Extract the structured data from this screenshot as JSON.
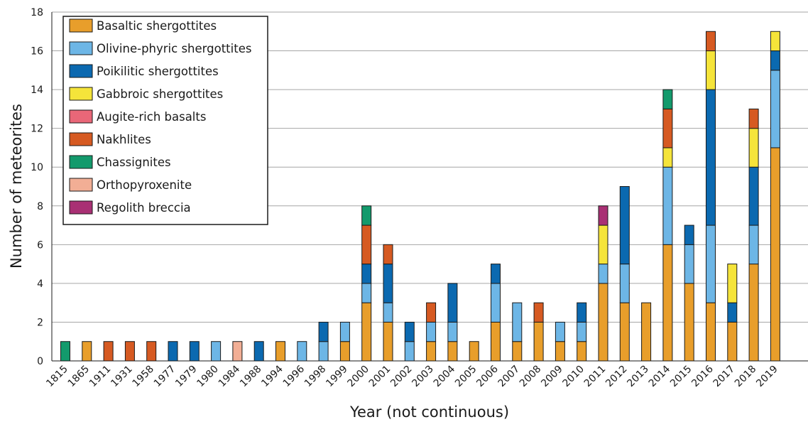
{
  "chart_data": {
    "type": "bar",
    "stacked": true,
    "title": "",
    "xlabel": "Year (not continuous)",
    "ylabel": "Number of meteorites",
    "ylim": [
      0,
      18
    ],
    "yticks": [
      0,
      2,
      4,
      6,
      8,
      10,
      12,
      14,
      16,
      18
    ],
    "grid": "horizontal",
    "legend_position": "top-left",
    "categories": [
      "1815",
      "1865",
      "1911",
      "1931",
      "1958",
      "1977",
      "1979",
      "1980",
      "1984",
      "1988",
      "1994",
      "1996",
      "1998",
      "1999",
      "2000",
      "2001",
      "2002",
      "2003",
      "2004",
      "2005",
      "2006",
      "2007",
      "2008",
      "2009",
      "2010",
      "2011",
      "2012",
      "2013",
      "2014",
      "2015",
      "2016",
      "2017",
      "2018",
      "2019"
    ],
    "series": [
      {
        "name": "Basaltic shergottites",
        "color": "#E89E2B",
        "values": [
          0,
          1,
          0,
          0,
          0,
          0,
          0,
          0,
          0,
          0,
          1,
          0,
          0,
          1,
          3,
          2,
          0,
          1,
          1,
          1,
          2,
          1,
          2,
          1,
          1,
          4,
          3,
          3,
          6,
          4,
          3,
          2,
          5,
          11
        ]
      },
      {
        "name": "Olivine-phyric shergottites",
        "color": "#6DB6E6",
        "values": [
          0,
          0,
          0,
          0,
          0,
          0,
          0,
          1,
          0,
          0,
          0,
          1,
          1,
          1,
          1,
          1,
          1,
          1,
          1,
          0,
          2,
          2,
          0,
          1,
          1,
          1,
          2,
          0,
          4,
          2,
          4,
          0,
          2,
          4
        ]
      },
      {
        "name": "Poikilitic shergottites",
        "color": "#0B69B0",
        "values": [
          0,
          0,
          0,
          0,
          0,
          1,
          1,
          0,
          0,
          1,
          0,
          0,
          1,
          0,
          1,
          2,
          1,
          0,
          2,
          0,
          1,
          0,
          0,
          0,
          1,
          0,
          4,
          0,
          0,
          1,
          7,
          1,
          3,
          1
        ]
      },
      {
        "name": "Gabbroic shergottites",
        "color": "#F5E43A",
        "values": [
          0,
          0,
          0,
          0,
          0,
          0,
          0,
          0,
          0,
          0,
          0,
          0,
          0,
          0,
          0,
          0,
          0,
          0,
          0,
          0,
          0,
          0,
          0,
          0,
          0,
          2,
          0,
          0,
          1,
          0,
          2,
          2,
          2,
          1
        ]
      },
      {
        "name": "Augite-rich basalts",
        "color": "#E96778",
        "values": [
          0,
          0,
          0,
          0,
          0,
          0,
          0,
          0,
          0,
          0,
          0,
          0,
          0,
          0,
          0,
          0,
          0,
          0,
          0,
          0,
          0,
          0,
          0,
          0,
          0,
          0,
          0,
          0,
          0,
          0,
          0,
          0,
          0,
          0
        ]
      },
      {
        "name": "Nakhlites",
        "color": "#D65A22",
        "values": [
          0,
          0,
          1,
          1,
          1,
          0,
          0,
          0,
          0,
          0,
          0,
          0,
          0,
          0,
          2,
          1,
          0,
          1,
          0,
          0,
          0,
          0,
          1,
          0,
          0,
          0,
          0,
          0,
          2,
          0,
          1,
          0,
          1,
          0
        ]
      },
      {
        "name": "Chassignites",
        "color": "#139A6C",
        "values": [
          1,
          0,
          0,
          0,
          0,
          0,
          0,
          0,
          0,
          0,
          0,
          0,
          0,
          0,
          1,
          0,
          0,
          0,
          0,
          0,
          0,
          0,
          0,
          0,
          0,
          0,
          0,
          0,
          1,
          0,
          0,
          0,
          0,
          0
        ]
      },
      {
        "name": "Orthopyroxenite",
        "color": "#F2AE95",
        "values": [
          0,
          0,
          0,
          0,
          0,
          0,
          0,
          0,
          1,
          0,
          0,
          0,
          0,
          0,
          0,
          0,
          0,
          0,
          0,
          0,
          0,
          0,
          0,
          0,
          0,
          0,
          0,
          0,
          0,
          0,
          0,
          0,
          0,
          0
        ]
      },
      {
        "name": "Regolith breccia",
        "color": "#A93074",
        "values": [
          0,
          0,
          0,
          0,
          0,
          0,
          0,
          0,
          0,
          0,
          0,
          0,
          0,
          0,
          0,
          0,
          0,
          0,
          0,
          0,
          0,
          0,
          0,
          0,
          0,
          1,
          0,
          0,
          0,
          0,
          0,
          0,
          0,
          0
        ]
      }
    ]
  }
}
